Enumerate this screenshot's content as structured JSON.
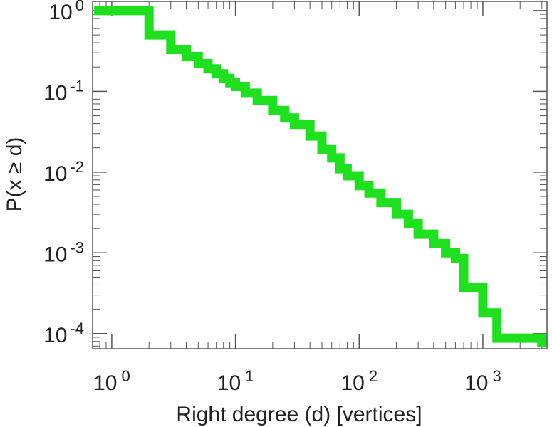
{
  "chart_data": {
    "type": "line",
    "subtype": "step-ccdf",
    "title": "",
    "xlabel": "Right degree (d) [vertices]",
    "ylabel": "P(x ≥ d)",
    "xscale": "log",
    "yscale": "log",
    "xlim": [
      0.7,
      3300
    ],
    "ylim": [
      6.5e-05,
      1.3
    ],
    "grid": false,
    "legend": "none",
    "x_ticks": [
      {
        "value": 1,
        "base": "10",
        "exp": "0"
      },
      {
        "value": 10,
        "base": "10",
        "exp": "1"
      },
      {
        "value": 100,
        "base": "10",
        "exp": "2"
      },
      {
        "value": 1000,
        "base": "10",
        "exp": "3"
      }
    ],
    "y_ticks": [
      {
        "value": 1,
        "base": "10",
        "exp": "0"
      },
      {
        "value": 0.1,
        "base": "10",
        "exp": "-1"
      },
      {
        "value": 0.01,
        "base": "10",
        "exp": "-2"
      },
      {
        "value": 0.001,
        "base": "10",
        "exp": "-3"
      },
      {
        "value": 0.0001,
        "base": "10",
        "exp": "-4"
      }
    ],
    "series": [
      {
        "color": "#1ee01e",
        "x": [
          1,
          2,
          3,
          4,
          5,
          6,
          7,
          8,
          9,
          10,
          12,
          15,
          20,
          25,
          30,
          40,
          50,
          60,
          70,
          80,
          100,
          120,
          150,
          200,
          250,
          300,
          400,
          500,
          600,
          700,
          1000,
          1300,
          3000
        ],
        "y": [
          1,
          0.5,
          0.33,
          0.27,
          0.22,
          0.19,
          0.165,
          0.145,
          0.128,
          0.115,
          0.095,
          0.077,
          0.058,
          0.047,
          0.039,
          0.028,
          0.019,
          0.015,
          0.011,
          0.009,
          0.0068,
          0.0055,
          0.0042,
          0.003,
          0.0023,
          0.0017,
          0.0013,
          0.001,
          0.00085,
          0.00037,
          0.00018,
          8.8e-05,
          8.8e-05
        ]
      }
    ]
  }
}
